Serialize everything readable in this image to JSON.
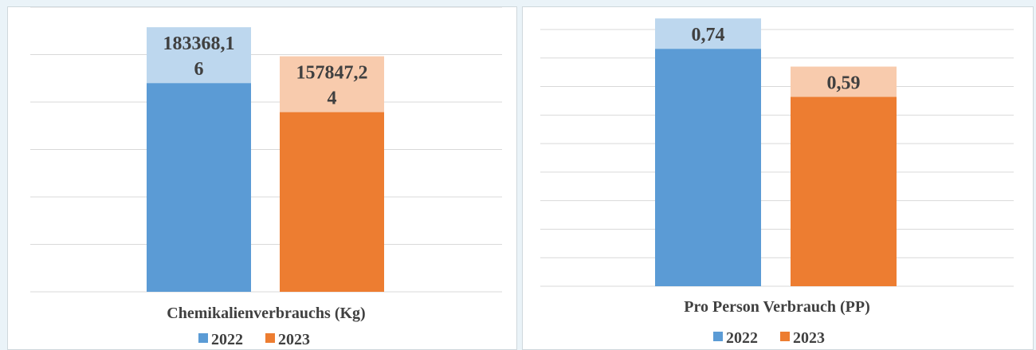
{
  "colors": {
    "series_2022": "#5b9bd5",
    "series_2023": "#ed7d31",
    "label_2022_bg": "#bdd7ee",
    "label_2023_bg": "#f8cbad",
    "gridline": "#d9d9d9",
    "text": "#404040"
  },
  "chart_data": [
    {
      "type": "bar",
      "xlabel": "Chemikalienverbrauchs  (Kg)",
      "ylim": [
        0,
        250000
      ],
      "gridlines": true,
      "legend_position": "bottom",
      "series": [
        {
          "name": "2022",
          "value": 183368.16,
          "label_lines": [
            "183368,1",
            "6"
          ]
        },
        {
          "name": "2023",
          "value": 157847.24,
          "label_lines": [
            "157847,2",
            "4"
          ]
        }
      ]
    },
    {
      "type": "bar",
      "xlabel": "Pro Person Verbrauch (PP)",
      "ylim": [
        0,
        0.8
      ],
      "gridlines": true,
      "legend_position": "bottom",
      "series": [
        {
          "name": "2022",
          "value": 0.74,
          "label_lines": [
            "0,74"
          ]
        },
        {
          "name": "2023",
          "value": 0.59,
          "label_lines": [
            "0,59"
          ]
        }
      ]
    }
  ]
}
